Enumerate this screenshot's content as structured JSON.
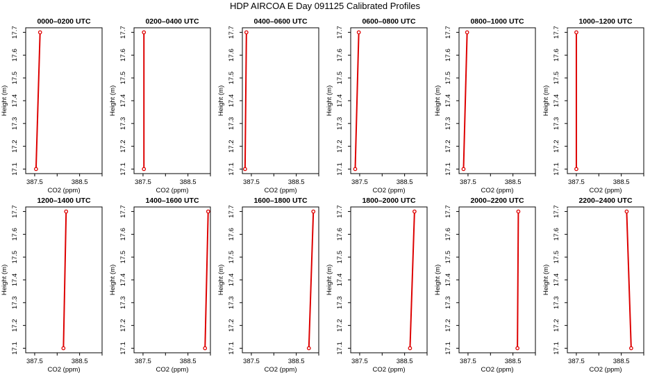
{
  "title": "HDP AIRCOA E  Day 091125  Calibrated Profiles",
  "style": {
    "line_color": "#dd0000",
    "marker_color": "#dd0000",
    "axis_color": "#000000"
  },
  "chart_data": [
    {
      "type": "line",
      "title": "0000–0200 UTC",
      "xlabel": "CO2 (ppm)",
      "ylabel": "Height (m)",
      "xlim": [
        387.3,
        389.0
      ],
      "ylim": [
        17.08,
        17.72
      ],
      "xticks": [
        "387.5",
        "388.5"
      ],
      "yticks": [
        "17.1",
        "17.2",
        "17.3",
        "17.4",
        "17.5",
        "17.6",
        "17.7"
      ],
      "series": [
        {
          "x": [
            387.53,
            387.62
          ],
          "y": [
            17.1,
            17.7
          ]
        }
      ]
    },
    {
      "type": "line",
      "title": "0200–0400 UTC",
      "xlabel": "CO2 (ppm)",
      "ylabel": "Height (m)",
      "xlim": [
        387.3,
        389.0
      ],
      "ylim": [
        17.08,
        17.72
      ],
      "xticks": [
        "387.5",
        "388.5"
      ],
      "yticks": [
        "17.1",
        "17.2",
        "17.3",
        "17.4",
        "17.5",
        "17.6",
        "17.7"
      ],
      "series": [
        {
          "x": [
            387.52,
            387.52
          ],
          "y": [
            17.1,
            17.7
          ]
        }
      ]
    },
    {
      "type": "line",
      "title": "0400–0600 UTC",
      "xlabel": "CO2 (ppm)",
      "ylabel": "Height (m)",
      "xlim": [
        387.3,
        389.0
      ],
      "ylim": [
        17.08,
        17.72
      ],
      "xticks": [
        "387.5",
        "388.5"
      ],
      "yticks": [
        "17.1",
        "17.2",
        "17.3",
        "17.4",
        "17.5",
        "17.6",
        "17.7"
      ],
      "series": [
        {
          "x": [
            387.36,
            387.39
          ],
          "y": [
            17.1,
            17.7
          ]
        }
      ]
    },
    {
      "type": "line",
      "title": "0600–0800 UTC",
      "xlabel": "CO2 (ppm)",
      "ylabel": "Height (m)",
      "xlim": [
        387.3,
        389.0
      ],
      "ylim": [
        17.08,
        17.72
      ],
      "xticks": [
        "387.5",
        "388.5"
      ],
      "yticks": [
        "17.1",
        "17.2",
        "17.3",
        "17.4",
        "17.5",
        "17.6",
        "17.7"
      ],
      "series": [
        {
          "x": [
            387.4,
            387.48
          ],
          "y": [
            17.1,
            17.7
          ]
        }
      ]
    },
    {
      "type": "line",
      "title": "0800–1000 UTC",
      "xlabel": "CO2 (ppm)",
      "ylabel": "Height (m)",
      "xlim": [
        387.3,
        389.0
      ],
      "ylim": [
        17.08,
        17.72
      ],
      "xticks": [
        "387.5",
        "388.5"
      ],
      "yticks": [
        "17.1",
        "17.2",
        "17.3",
        "17.4",
        "17.5",
        "17.6",
        "17.7"
      ],
      "series": [
        {
          "x": [
            387.4,
            387.48
          ],
          "y": [
            17.1,
            17.7
          ]
        }
      ]
    },
    {
      "type": "line",
      "title": "1000–1200 UTC",
      "xlabel": "CO2 (ppm)",
      "ylabel": "Height (m)",
      "xlim": [
        387.3,
        389.0
      ],
      "ylim": [
        17.08,
        17.72
      ],
      "xticks": [
        "387.5",
        "388.5"
      ],
      "yticks": [
        "17.1",
        "17.2",
        "17.3",
        "17.4",
        "17.5",
        "17.6",
        "17.7"
      ],
      "series": [
        {
          "x": [
            387.5,
            387.5
          ],
          "y": [
            17.1,
            17.7
          ]
        }
      ]
    },
    {
      "type": "line",
      "title": "1200–1400 UTC",
      "xlabel": "CO2 (ppm)",
      "ylabel": "Height (m)",
      "xlim": [
        387.3,
        389.0
      ],
      "ylim": [
        17.08,
        17.72
      ],
      "xticks": [
        "387.5",
        "388.5"
      ],
      "yticks": [
        "17.1",
        "17.2",
        "17.3",
        "17.4",
        "17.5",
        "17.6",
        "17.7"
      ],
      "series": [
        {
          "x": [
            388.14,
            388.2
          ],
          "y": [
            17.1,
            17.7
          ]
        }
      ]
    },
    {
      "type": "line",
      "title": "1400–1600 UTC",
      "xlabel": "CO2 (ppm)",
      "ylabel": "Height (m)",
      "xlim": [
        387.3,
        389.0
      ],
      "ylim": [
        17.08,
        17.72
      ],
      "xticks": [
        "387.5",
        "388.5"
      ],
      "yticks": [
        "17.1",
        "17.2",
        "17.3",
        "17.4",
        "17.5",
        "17.6",
        "17.7"
      ],
      "series": [
        {
          "x": [
            388.88,
            388.95
          ],
          "y": [
            17.1,
            17.7
          ]
        }
      ]
    },
    {
      "type": "line",
      "title": "1600–1800 UTC",
      "xlabel": "CO2 (ppm)",
      "ylabel": "Height (m)",
      "xlim": [
        387.3,
        389.0
      ],
      "ylim": [
        17.08,
        17.72
      ],
      "xticks": [
        "387.5",
        "388.5"
      ],
      "yticks": [
        "17.1",
        "17.2",
        "17.3",
        "17.4",
        "17.5",
        "17.6",
        "17.7"
      ],
      "series": [
        {
          "x": [
            388.78,
            388.88
          ],
          "y": [
            17.1,
            17.7
          ]
        }
      ]
    },
    {
      "type": "line",
      "title": "1800–2000 UTC",
      "xlabel": "CO2 (ppm)",
      "ylabel": "Height (m)",
      "xlim": [
        387.3,
        389.0
      ],
      "ylim": [
        17.08,
        17.72
      ],
      "xticks": [
        "387.5",
        "388.5"
      ],
      "yticks": [
        "17.1",
        "17.2",
        "17.3",
        "17.4",
        "17.5",
        "17.6",
        "17.7"
      ],
      "series": [
        {
          "x": [
            388.62,
            388.72
          ],
          "y": [
            17.1,
            17.7
          ]
        }
      ]
    },
    {
      "type": "line",
      "title": "2000–2200 UTC",
      "xlabel": "CO2 (ppm)",
      "ylabel": "Height (m)",
      "xlim": [
        387.3,
        389.0
      ],
      "ylim": [
        17.08,
        17.72
      ],
      "xticks": [
        "387.5",
        "388.5"
      ],
      "yticks": [
        "17.1",
        "17.2",
        "17.3",
        "17.4",
        "17.5",
        "17.6",
        "17.7"
      ],
      "series": [
        {
          "x": [
            388.6,
            388.62
          ],
          "y": [
            17.1,
            17.7
          ]
        }
      ]
    },
    {
      "type": "line",
      "title": "2200–2400 UTC",
      "xlabel": "CO2 (ppm)",
      "ylabel": "Height (m)",
      "xlim": [
        387.3,
        389.0
      ],
      "ylim": [
        17.08,
        17.72
      ],
      "xticks": [
        "387.5",
        "388.5"
      ],
      "yticks": [
        "17.1",
        "17.2",
        "17.3",
        "17.4",
        "17.5",
        "17.6",
        "17.7"
      ],
      "series": [
        {
          "x": [
            388.72,
            388.62
          ],
          "y": [
            17.1,
            17.7
          ]
        }
      ]
    }
  ]
}
